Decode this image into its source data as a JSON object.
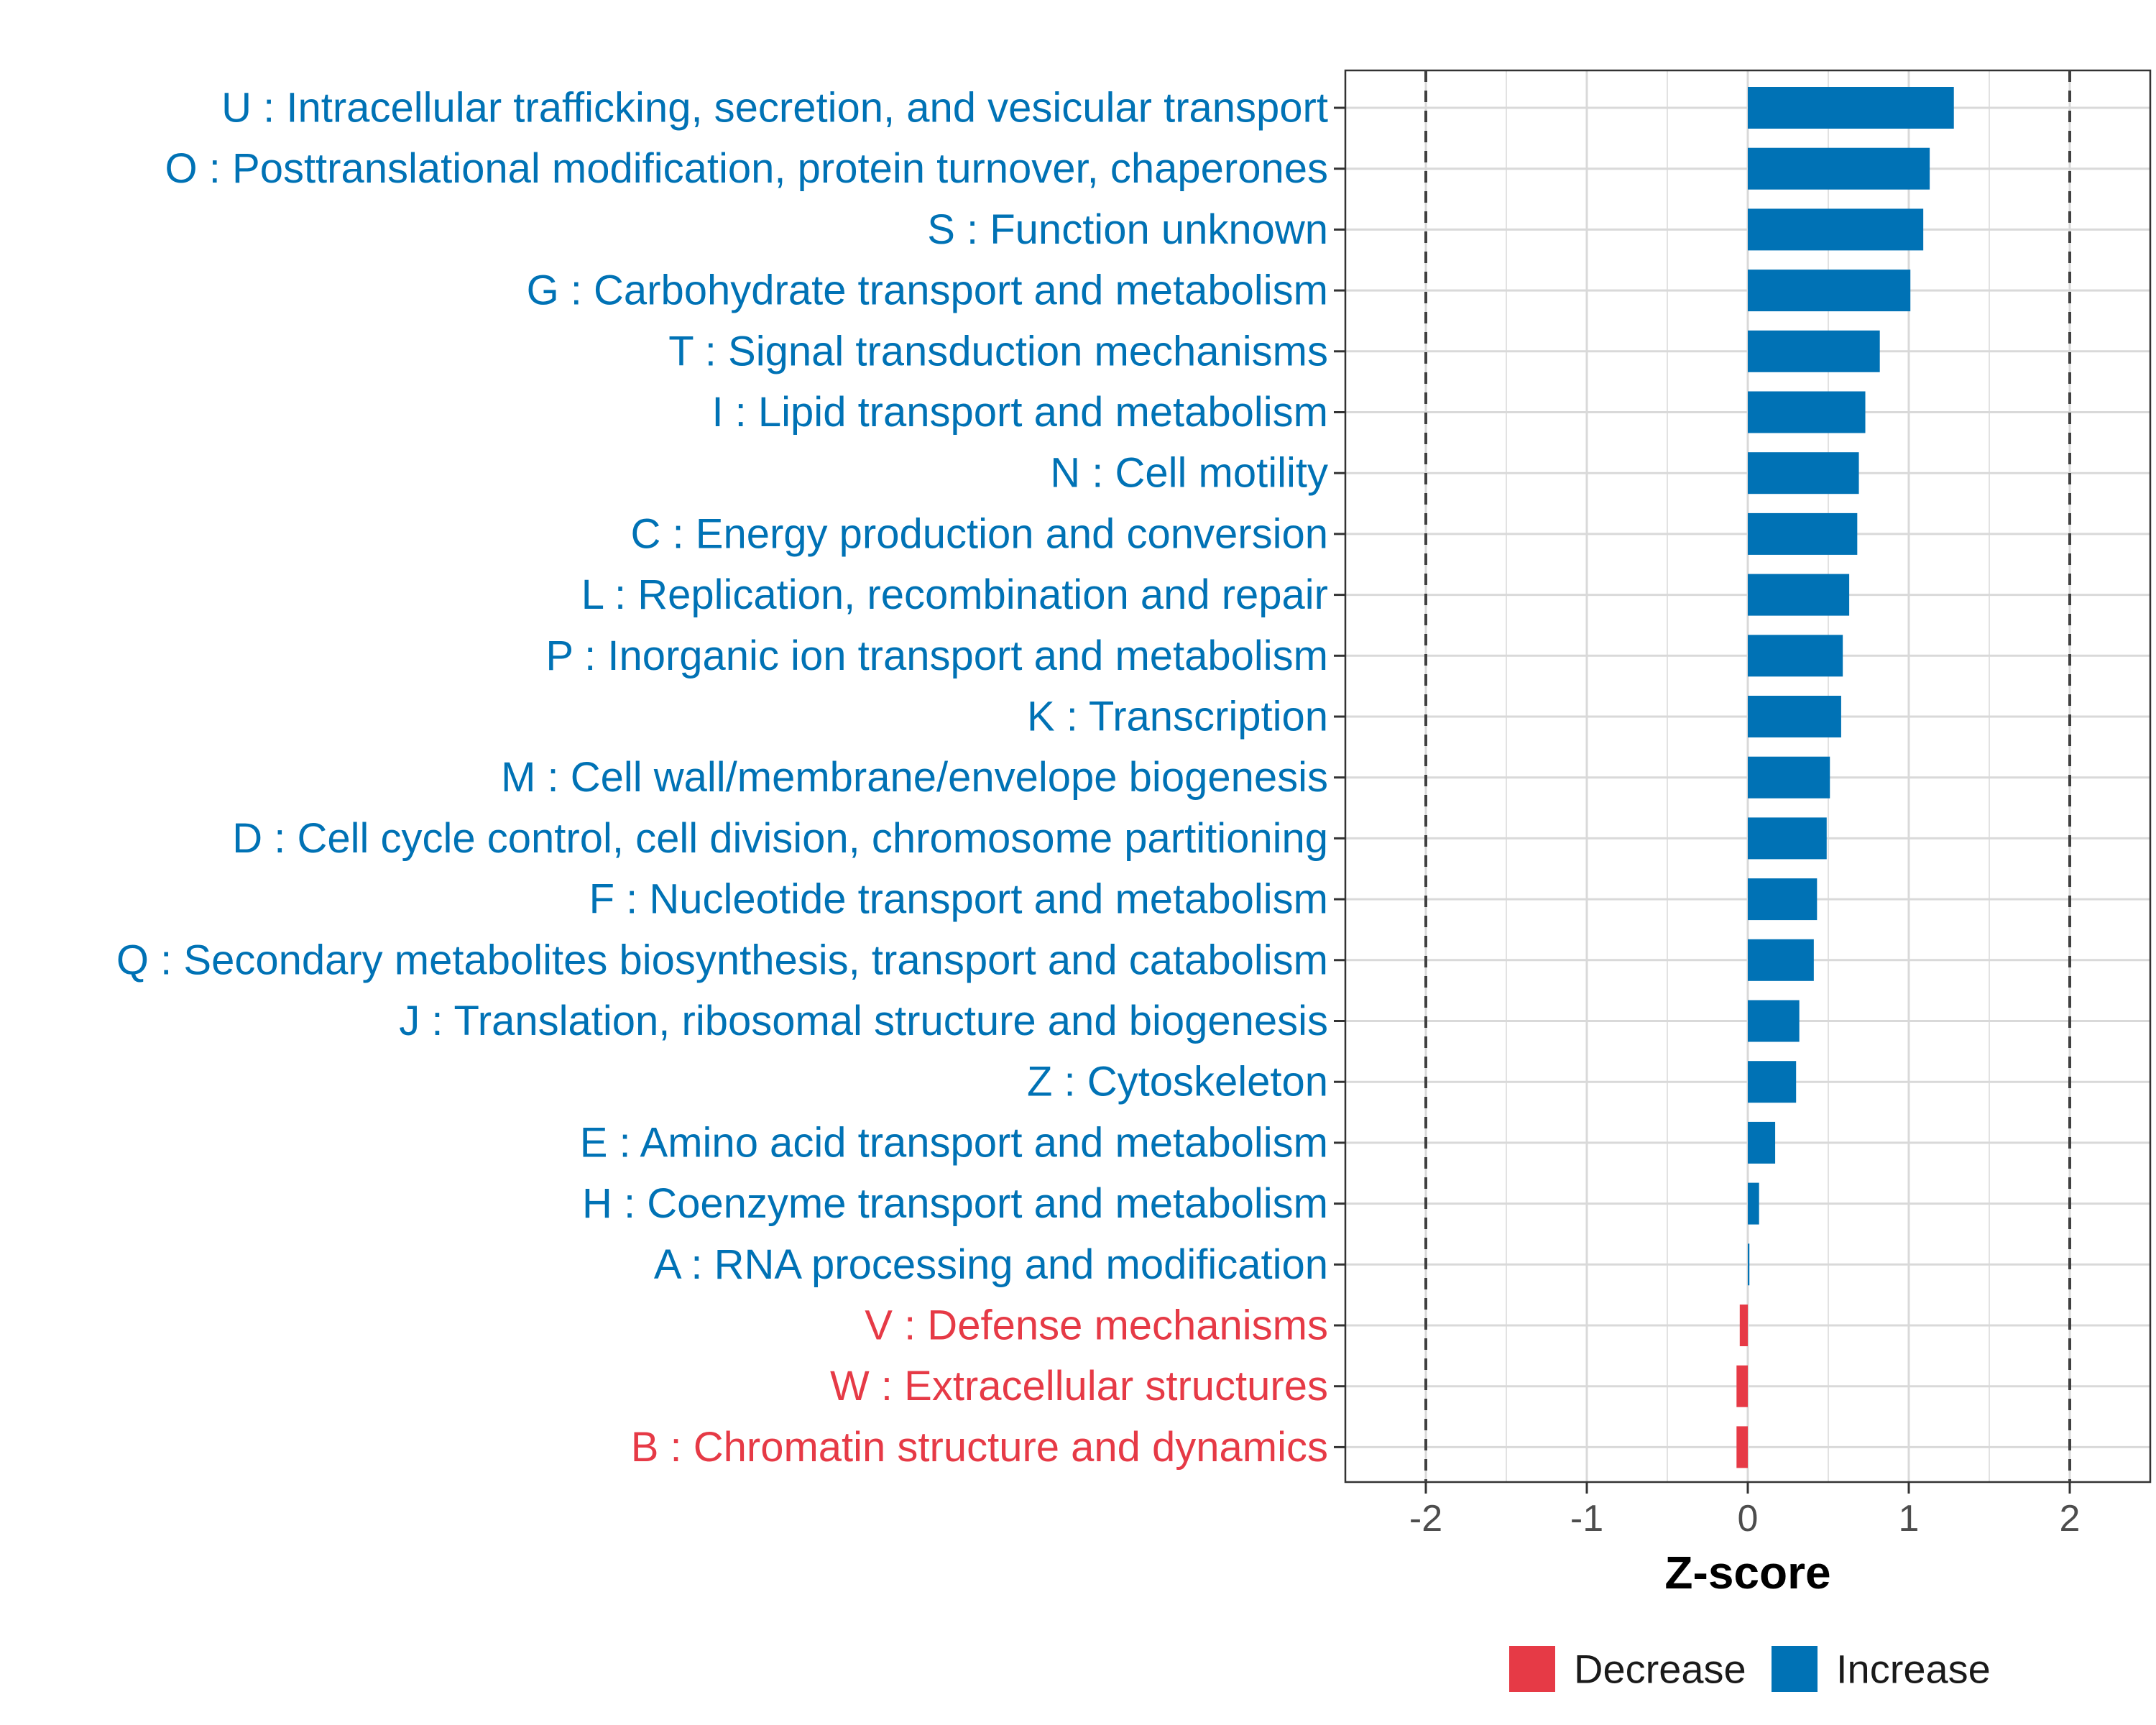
{
  "chart_data": {
    "type": "bar",
    "orientation": "horizontal",
    "title": "",
    "xlabel": "Z-score",
    "ylabel": "",
    "xlim": [
      -2.5,
      2.5
    ],
    "xticks": [
      "-2",
      "-1",
      "0",
      "1",
      "2"
    ],
    "xtick_values": [
      -2,
      -1,
      0,
      1,
      2
    ],
    "reference_lines": [
      -2,
      2
    ],
    "grid": true,
    "colors": {
      "Decrease": "#e63a46",
      "Increase": "#0072b5"
    },
    "categories": [
      "U : Intracellular trafficking, secretion, and vesicular transport",
      "O : Posttranslational modification, protein turnover, chaperones",
      "S : Function unknown",
      "G : Carbohydrate transport and metabolism",
      "T : Signal transduction mechanisms",
      "I : Lipid transport and metabolism",
      "N : Cell motility",
      "C : Energy production and conversion",
      "L : Replication, recombination and repair",
      "P : Inorganic ion transport and metabolism",
      "K : Transcription",
      "M : Cell wall/membrane/envelope biogenesis",
      "D : Cell cycle control, cell division, chromosome partitioning",
      "F : Nucleotide transport and metabolism",
      "Q : Secondary metabolites biosynthesis, transport and catabolism",
      "J : Translation, ribosomal structure and biogenesis",
      "Z : Cytoskeleton",
      "E : Amino acid transport and metabolism",
      "H : Coenzyme transport and metabolism",
      "A : RNA processing and modification",
      "V : Defense mechanisms",
      "W : Extracellular structures",
      "B : Chromatin structure and dynamics"
    ],
    "values": [
      1.28,
      1.13,
      1.09,
      1.01,
      0.82,
      0.73,
      0.69,
      0.68,
      0.63,
      0.59,
      0.58,
      0.51,
      0.49,
      0.43,
      0.41,
      0.32,
      0.3,
      0.17,
      0.07,
      0.01,
      -0.05,
      -0.07,
      -0.07
    ],
    "groups": [
      "Increase",
      "Increase",
      "Increase",
      "Increase",
      "Increase",
      "Increase",
      "Increase",
      "Increase",
      "Increase",
      "Increase",
      "Increase",
      "Increase",
      "Increase",
      "Increase",
      "Increase",
      "Increase",
      "Increase",
      "Increase",
      "Increase",
      "Increase",
      "Decrease",
      "Decrease",
      "Decrease"
    ],
    "legend": {
      "position": "bottom",
      "entries": [
        "Decrease",
        "Increase"
      ]
    }
  }
}
